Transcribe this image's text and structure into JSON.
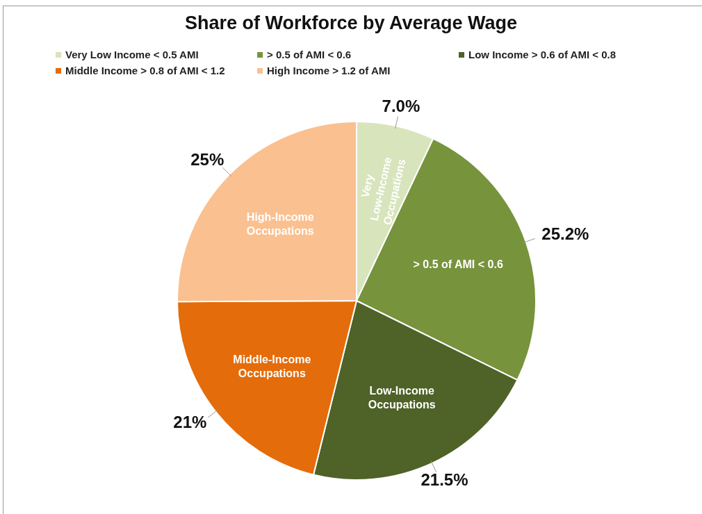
{
  "chart_data": {
    "type": "pie",
    "title": "Share of Workforce by Average Wage",
    "categories": [
      "Very Low Income < 0.5 AMI",
      "> 0.5 of AMI < 0.6",
      "Low Income > 0.6 of AMI < 0.8",
      "Middle Income > 0.8 of AMI < 1.2",
      "High Income > 1.2 of AMI"
    ],
    "values": [
      7.0,
      25.2,
      21.5,
      21,
      25
    ],
    "value_labels": [
      "7.0%",
      "25.2%",
      "21.5%",
      "21%",
      "25%"
    ],
    "colors": [
      "#d8e4bc",
      "#77933c",
      "#4f6228",
      "#e46c0a",
      "#fac090"
    ],
    "legend": "top",
    "annotations": [
      {
        "text": "Very Low-Income Occupations",
        "x": "Very Low Income < 0.5 AMI"
      },
      {
        "text": "> 0.5 of AMI < 0.6",
        "x": "> 0.5 of AMI < 0.6"
      },
      {
        "text": "Low-Income Occupations",
        "x": "Low Income > 0.6 of AMI < 0.8"
      },
      {
        "text": "Middle-Income Occupations",
        "x": "Middle Income > 0.8 of AMI < 1.2"
      },
      {
        "text": "High-Income Occupations",
        "x": "High Income > 1.2 of AMI"
      }
    ]
  }
}
